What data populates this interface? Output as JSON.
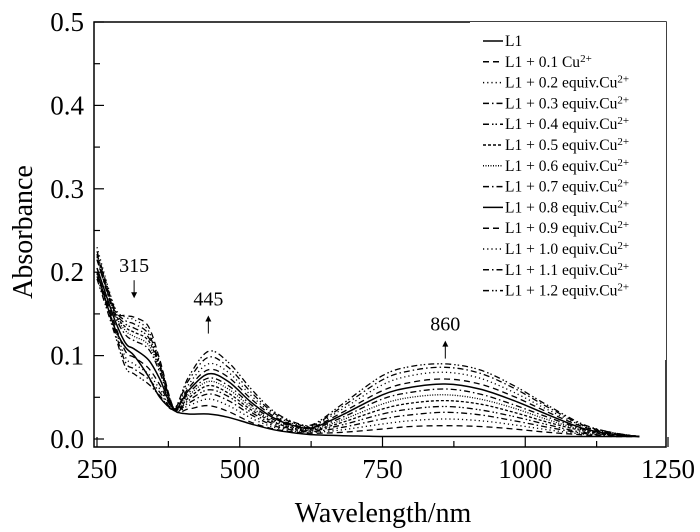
{
  "chart_data": {
    "type": "line",
    "title": "",
    "xlabel": "Wavelength/nm",
    "ylabel": "Absorbance",
    "xlim": [
      250,
      1250
    ],
    "ylim": [
      0.0,
      0.5
    ],
    "xticks": [
      250,
      500,
      750,
      1000,
      1250
    ],
    "xtick_labels": [
      "250",
      "500",
      "750",
      "1000",
      "1250"
    ],
    "yticks": [
      0.0,
      0.1,
      0.2,
      0.3,
      0.4,
      0.5
    ],
    "ytick_labels": [
      "0.0",
      "0.1",
      "0.2",
      "0.3",
      "0.4",
      "0.5"
    ],
    "grid": false,
    "legend_position": "top-right",
    "x": [
      250,
      280,
      300,
      315,
      340,
      360,
      385,
      410,
      445,
      480,
      520,
      560,
      600,
      630,
      680,
      750,
      800,
      860,
      920,
      980,
      1040,
      1100,
      1150,
      1200
    ],
    "series": [
      {
        "name": "L1",
        "legend_prefix": "",
        "legend_main": "L1",
        "legend_sup": "",
        "dash": "solid",
        "values": [
          0.2,
          0.135,
          0.11,
          0.1,
          0.075,
          0.05,
          0.034,
          0.03,
          0.03,
          0.026,
          0.018,
          0.011,
          0.007,
          0.005,
          0.004,
          0.003,
          0.003,
          0.003,
          0.003,
          0.003,
          0.003,
          0.003,
          0.003,
          0.003
        ]
      },
      {
        "name": "L1 + 0.1 Cu2+",
        "legend_main": "L1 + 0.1 Cu",
        "legend_sup": "2+",
        "dash": "dash",
        "values": [
          0.215,
          0.155,
          0.148,
          0.146,
          0.135,
          0.095,
          0.036,
          0.036,
          0.04,
          0.033,
          0.02,
          0.012,
          0.008,
          0.007,
          0.008,
          0.012,
          0.015,
          0.016,
          0.015,
          0.012,
          0.008,
          0.005,
          0.003,
          0.003
        ]
      },
      {
        "name": "L1 + 0.2 equiv.Cu2+",
        "legend_main": "L1 + 0.2 equiv.Cu",
        "legend_sup": "2+",
        "dash": "dot",
        "values": [
          0.23,
          0.16,
          0.146,
          0.143,
          0.13,
          0.092,
          0.036,
          0.04,
          0.048,
          0.04,
          0.025,
          0.014,
          0.009,
          0.008,
          0.011,
          0.018,
          0.022,
          0.024,
          0.022,
          0.017,
          0.011,
          0.006,
          0.004,
          0.003
        ]
      },
      {
        "name": "L1 + 0.3 equiv.Cu2+",
        "legend_main": "L1 + 0.3 equiv.Cu",
        "legend_sup": "2+",
        "dash": "dashdot",
        "values": [
          0.225,
          0.158,
          0.142,
          0.138,
          0.126,
          0.09,
          0.036,
          0.043,
          0.054,
          0.046,
          0.029,
          0.016,
          0.01,
          0.009,
          0.014,
          0.024,
          0.029,
          0.032,
          0.029,
          0.022,
          0.014,
          0.007,
          0.004,
          0.003
        ]
      },
      {
        "name": "L1 + 0.4 equiv.Cu2+",
        "legend_main": "L1 + 0.4 equiv.Cu",
        "legend_sup": "2+",
        "dash": "dashdotdot",
        "values": [
          0.222,
          0.156,
          0.138,
          0.133,
          0.122,
          0.088,
          0.036,
          0.046,
          0.059,
          0.051,
          0.032,
          0.018,
          0.011,
          0.01,
          0.017,
          0.03,
          0.036,
          0.039,
          0.035,
          0.027,
          0.017,
          0.008,
          0.005,
          0.003
        ]
      },
      {
        "name": "L1 + 0.5 equiv.Cu2+",
        "legend_main": "L1 + 0.5 equiv.Cu",
        "legend_sup": "2+",
        "dash": "shortdash",
        "values": [
          0.22,
          0.154,
          0.134,
          0.128,
          0.118,
          0.086,
          0.036,
          0.049,
          0.064,
          0.055,
          0.035,
          0.02,
          0.012,
          0.011,
          0.02,
          0.036,
          0.043,
          0.046,
          0.042,
          0.032,
          0.02,
          0.01,
          0.005,
          0.003
        ]
      },
      {
        "name": "L1 + 0.6 equiv.Cu2+",
        "legend_main": "L1 + 0.6 equiv.Cu",
        "legend_sup": "2+",
        "dash": "densedot",
        "values": [
          0.218,
          0.152,
          0.13,
          0.123,
          0.113,
          0.083,
          0.036,
          0.052,
          0.069,
          0.06,
          0.038,
          0.021,
          0.013,
          0.012,
          0.023,
          0.042,
          0.05,
          0.053,
          0.048,
          0.037,
          0.023,
          0.011,
          0.006,
          0.003
        ]
      },
      {
        "name": "L1 + 0.7 equiv.Cu2+",
        "legend_main": "L1 + 0.7 equiv.Cu",
        "legend_sup": "2+",
        "dash": "dashdot",
        "values": [
          0.215,
          0.15,
          0.125,
          0.118,
          0.108,
          0.08,
          0.036,
          0.055,
          0.073,
          0.064,
          0.041,
          0.023,
          0.014,
          0.013,
          0.026,
          0.048,
          0.056,
          0.06,
          0.054,
          0.041,
          0.026,
          0.012,
          0.006,
          0.003
        ]
      },
      {
        "name": "L1 + 0.8 equiv.Cu2+",
        "legend_main": "L1 + 0.8 equiv.Cu",
        "legend_sup": "2+",
        "dash": "solid",
        "values": [
          0.205,
          0.145,
          0.115,
          0.108,
          0.095,
          0.072,
          0.036,
          0.058,
          0.078,
          0.069,
          0.044,
          0.025,
          0.015,
          0.014,
          0.029,
          0.053,
          0.062,
          0.066,
          0.06,
          0.046,
          0.029,
          0.013,
          0.006,
          0.003
        ]
      },
      {
        "name": "L1 + 0.9 equiv.Cu2+",
        "legend_main": "L1 + 0.9 equiv.Cu",
        "legend_sup": "2+",
        "dash": "dash",
        "values": [
          0.2,
          0.14,
          0.105,
          0.098,
          0.085,
          0.065,
          0.036,
          0.061,
          0.083,
          0.074,
          0.048,
          0.027,
          0.016,
          0.015,
          0.032,
          0.058,
          0.068,
          0.072,
          0.066,
          0.051,
          0.032,
          0.015,
          0.007,
          0.003
        ]
      },
      {
        "name": "L1 + 1.0 equiv.Cu2+",
        "legend_main": "L1 + 1.0 equiv.Cu",
        "legend_sup": "2+",
        "dash": "dot",
        "values": [
          0.198,
          0.136,
          0.098,
          0.09,
          0.078,
          0.06,
          0.036,
          0.065,
          0.09,
          0.08,
          0.052,
          0.029,
          0.017,
          0.016,
          0.036,
          0.065,
          0.076,
          0.08,
          0.073,
          0.056,
          0.035,
          0.016,
          0.007,
          0.003
        ]
      },
      {
        "name": "L1 + 1.1 equiv.Cu2+",
        "legend_main": "L1 + 1.1 equiv.Cu",
        "legend_sup": "2+",
        "dash": "dashdot",
        "values": [
          0.195,
          0.132,
          0.092,
          0.084,
          0.072,
          0.056,
          0.036,
          0.07,
          0.098,
          0.086,
          0.056,
          0.031,
          0.018,
          0.017,
          0.039,
          0.071,
          0.082,
          0.086,
          0.079,
          0.061,
          0.038,
          0.017,
          0.008,
          0.003
        ]
      },
      {
        "name": "L1 + 1.2 equiv.Cu2+",
        "legend_main": "L1 + 1.2 equiv.Cu",
        "legend_sup": "2+",
        "dash": "dashdotdot",
        "values": [
          0.192,
          0.128,
          0.086,
          0.078,
          0.066,
          0.052,
          0.036,
          0.074,
          0.105,
          0.092,
          0.06,
          0.033,
          0.019,
          0.018,
          0.042,
          0.076,
          0.087,
          0.09,
          0.083,
          0.064,
          0.04,
          0.018,
          0.008,
          0.003
        ]
      }
    ],
    "annotations": [
      {
        "text": "315",
        "x": 315,
        "arrow": "down",
        "y_text": 0.2
      },
      {
        "text": "445",
        "x": 445,
        "arrow": "up",
        "y_text": 0.16
      },
      {
        "text": "860",
        "x": 860,
        "arrow": "up",
        "y_text": 0.13
      }
    ]
  }
}
